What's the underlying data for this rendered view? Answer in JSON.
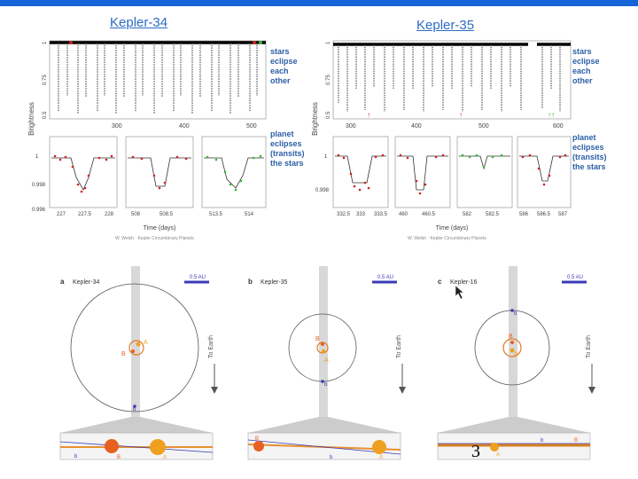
{
  "header": {
    "color": "#1565d8"
  },
  "kepler34_panel": {
    "title": "Kepler-34",
    "y_label": "Brightness",
    "y_ticks": [
      "1",
      "0.75",
      "0.5"
    ],
    "x_ticks": [
      "300",
      "400",
      "500"
    ],
    "stars_note": [
      "stars",
      "eclipse",
      "each",
      "other"
    ],
    "planet_note": [
      "planet",
      "eclipses",
      "(transits)",
      "the stars"
    ],
    "zoom_y_ticks": [
      "1",
      "0.998",
      "0.996"
    ],
    "zoom_x_ticks": [
      [
        "227",
        "227.5",
        "228"
      ],
      [
        "508",
        "508.5"
      ],
      [
        "513.5",
        "514"
      ]
    ],
    "xlabel": "Time (days)",
    "credit": "W. Welsh  ·  Kepler Circumbinary Planets"
  },
  "kepler35_panel": {
    "title": "Kepler-35",
    "y_label": "Brightness",
    "y_ticks": [
      "1",
      "0.75",
      "0.5"
    ],
    "x_ticks": [
      "300",
      "400",
      "500",
      "600"
    ],
    "stars_note": [
      "stars",
      "eclipse",
      "each",
      "other"
    ],
    "planet_note": [
      "planet",
      "eclipses",
      "(transits)",
      "the stars"
    ],
    "zoom_y_ticks": [
      "1",
      "0.998"
    ],
    "zoom_x_ticks": [
      [
        "332.5",
        "333",
        "333.5"
      ],
      [
        "460",
        "460.5"
      ],
      [
        "582",
        "582.5"
      ],
      [
        "586",
        "586.5",
        "587"
      ]
    ],
    "xlabel": "Time (days)",
    "credit": "W. Welsh  ·  Kepler Circumbinary Planets"
  },
  "orbits": [
    {
      "letter": "a",
      "name": "Kepler-34",
      "scale": "0.5 AU",
      "to_earth": "To Earth",
      "star_a": "A",
      "star_b": "B",
      "planet": "b"
    },
    {
      "letter": "b",
      "name": "Kepler-35",
      "scale": "0.5 AU",
      "to_earth": "To Earth",
      "star_a": "A",
      "star_b": "B",
      "planet": "b"
    },
    {
      "letter": "c",
      "name": "Kepler-16",
      "scale": "0.5 AU",
      "to_earth": "To Earth",
      "star_a": "A",
      "star_b": "B",
      "planet": "b"
    }
  ],
  "page_number": "3",
  "colors": {
    "title": "#2b6cc4",
    "note": "#2b5fa8",
    "red": "#cc2222",
    "green": "#33bb33",
    "orange": "#f0a020",
    "darkorange": "#e86020",
    "scalebar": "#3b3bb8"
  }
}
